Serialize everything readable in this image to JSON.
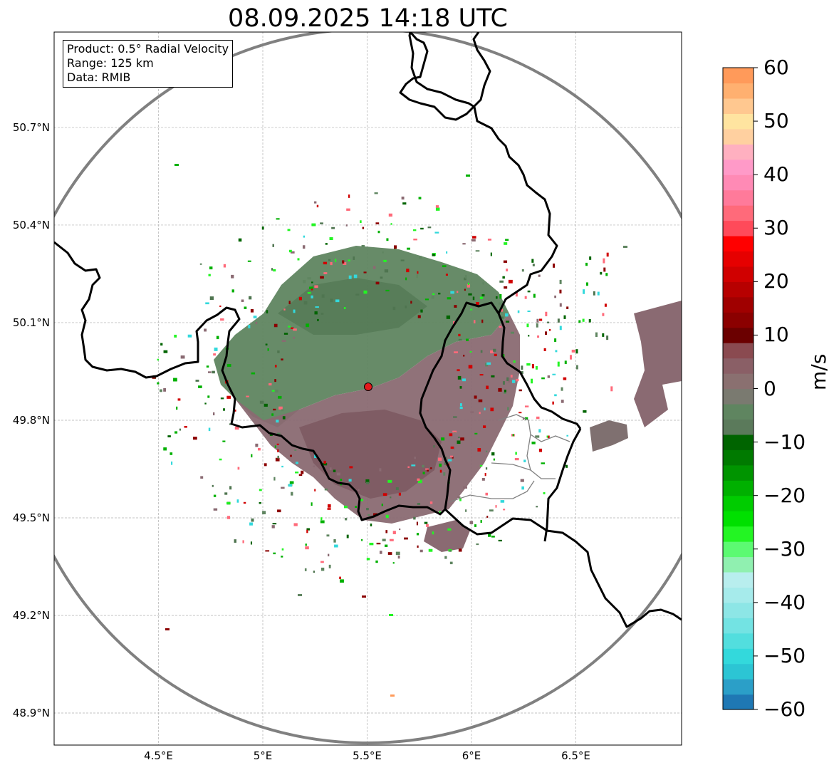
{
  "title": "08.09.2025 14:18 UTC",
  "info": {
    "product": "Product: 0.5° Radial Velocity",
    "range": "Range: 125 km",
    "source": "Data: RMIB"
  },
  "axes": {
    "lat_ticks": [
      {
        "value": 50.7,
        "label": "50.7°N"
      },
      {
        "value": 50.4,
        "label": "50.4°N"
      },
      {
        "value": 50.1,
        "label": "50.1°N"
      },
      {
        "value": 49.8,
        "label": "49.8°N"
      },
      {
        "value": 49.5,
        "label": "49.5°N"
      },
      {
        "value": 49.2,
        "label": "49.2°N"
      },
      {
        "value": 48.9,
        "label": "48.9°N"
      }
    ],
    "lon_ticks": [
      {
        "value": 4.5,
        "label": "4.5°E"
      },
      {
        "value": 5.0,
        "label": "5°E"
      },
      {
        "value": 5.5,
        "label": "5.5°E"
      },
      {
        "value": 6.0,
        "label": "6°E"
      },
      {
        "value": 6.5,
        "label": "6.5°E"
      }
    ],
    "lon_range": [
      4.0,
      7.0
    ],
    "lat_range": [
      48.8,
      51.0
    ]
  },
  "radar": {
    "lon": 5.5,
    "lat": 49.915,
    "marker_color": "#e31a1c"
  },
  "colorbar": {
    "unit": "m/s",
    "min": -60,
    "max": 60,
    "tick_labels": [
      "60",
      "50",
      "40",
      "30",
      "20",
      "10",
      "0",
      "−10",
      "−20",
      "−30",
      "−40",
      "−50",
      "−60"
    ],
    "colors": [
      "#1f78b4",
      "#2b9fc8",
      "#2cc5d4",
      "#33d9dc",
      "#52dede",
      "#73e3e3",
      "#8de6e6",
      "#a6ebeb",
      "#b8eeee",
      "#90f0b0",
      "#5cfa72",
      "#23f523",
      "#00e000",
      "#00cc00",
      "#00b000",
      "#009400",
      "#007a00",
      "#006400",
      "#5b7a5b",
      "#5f8560",
      "#7a7a70",
      "#8a7070",
      "#8a5f66",
      "#8a4a50",
      "#6b0000",
      "#8b0000",
      "#a00000",
      "#b70000",
      "#d00000",
      "#e60000",
      "#ff0000",
      "#ff4a5a",
      "#ff6a7a",
      "#ff7a9a",
      "#ff8ab5",
      "#ff9ac8",
      "#ffb0c0",
      "#ffd0a0",
      "#ffe4a0",
      "#ffc890",
      "#ffb070",
      "#ff9a5a"
    ]
  }
}
